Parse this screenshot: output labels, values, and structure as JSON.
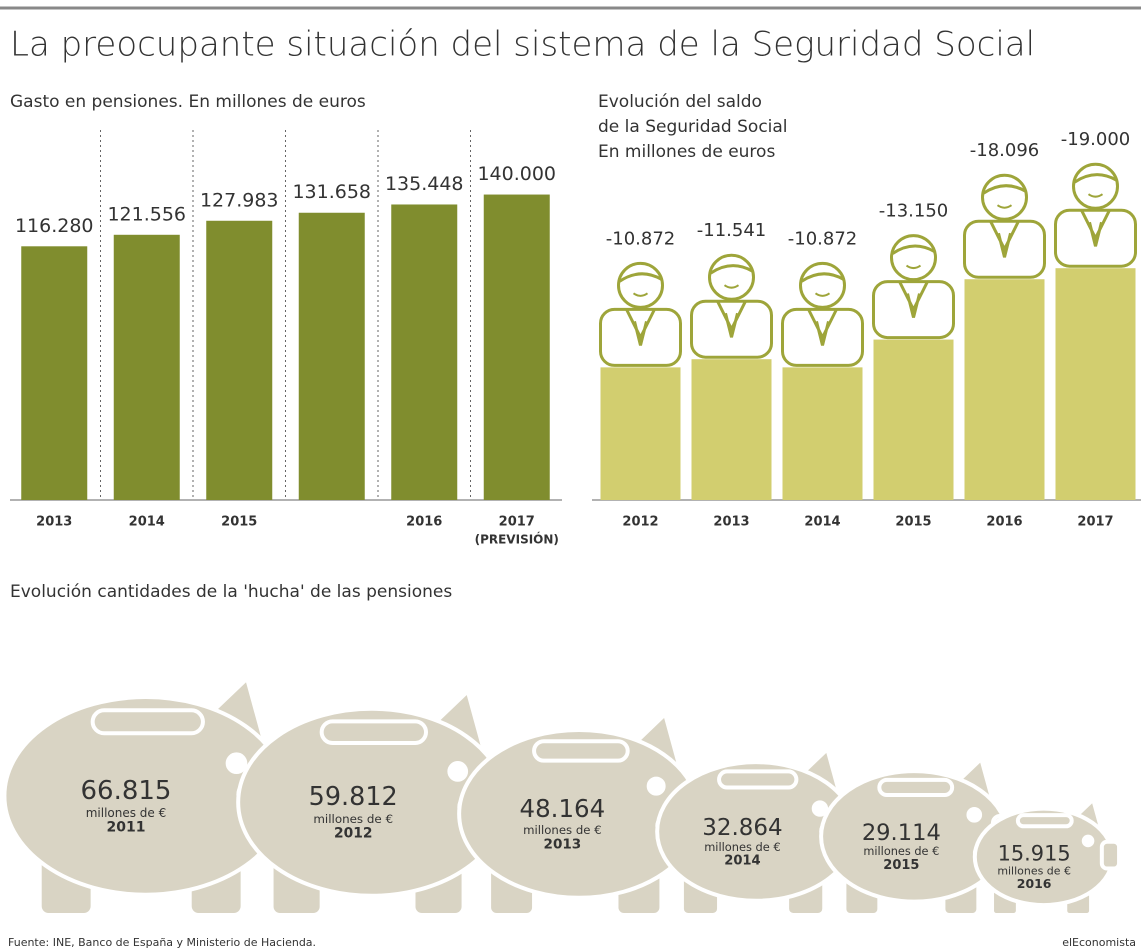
{
  "header": {
    "title": "La preocupante situación del sistema de la Seguridad Social"
  },
  "chart_data": [
    {
      "type": "bar",
      "title": "Gasto en pensiones. En millones de euros",
      "categories": [
        "2013",
        "2014",
        "2015",
        null,
        "2016",
        "2017"
      ],
      "annotation": "(PREVISIÓN)",
      "values": [
        116280,
        121556,
        127983,
        131658,
        135448,
        140000
      ],
      "value_labels": [
        "116.280",
        "121.556",
        "127.983",
        "131.658",
        "135.448",
        "140.000"
      ],
      "color": "#808d2e",
      "ylim": [
        0,
        165000
      ]
    },
    {
      "type": "person-bar",
      "title_lines": [
        "Evolución del saldo",
        "de la Seguridad Social",
        "En millones de euros"
      ],
      "categories": [
        "2012",
        "2013",
        "2014",
        "2015",
        "2016",
        "2017"
      ],
      "values": [
        -10872,
        -11541,
        -10872,
        -13150,
        -18096,
        -19000
      ],
      "value_labels": [
        "-10.872",
        "-11.541",
        "-10.872",
        "-13.150",
        "-18.096",
        "-19.000"
      ],
      "color": "#d2ce6f",
      "icon_color": "#9ea53a",
      "ylim": [
        0,
        -30000
      ]
    },
    {
      "type": "pictogram",
      "title": "Evolución cantidades de la 'hucha' de las pensiones",
      "categories": [
        "2011",
        "2012",
        "2013",
        "2014",
        "2015",
        "2016"
      ],
      "values": [
        66815,
        59812,
        48164,
        32864,
        29114,
        15915
      ],
      "value_labels": [
        "66.815",
        "59.812",
        "48.164",
        "32.864",
        "29.114",
        "15.915"
      ],
      "unit": "millones de €",
      "color": "#d9d4c4"
    }
  ],
  "footer": {
    "source": "Fuente: INE, Banco de España y Ministerio de Hacienda.",
    "credit": "elEconomista"
  }
}
